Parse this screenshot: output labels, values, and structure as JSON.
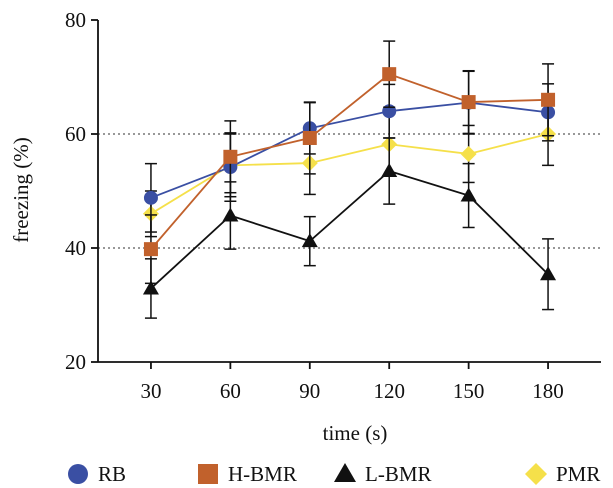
{
  "chart_data": {
    "type": "line",
    "title": "",
    "xlabel": "time (s)",
    "ylabel": "freezing (%)",
    "x": [
      30,
      60,
      90,
      120,
      150,
      180
    ],
    "xlim": [
      10,
      200
    ],
    "ylim": [
      20,
      80
    ],
    "yticks": [
      20,
      40,
      60,
      80
    ],
    "gridlines_y": [
      40,
      60
    ],
    "grid": "dotted horizontal at 40 and 60",
    "legend_position": "bottom",
    "series": [
      {
        "name": "RB",
        "marker": "circle",
        "color": "#3a4fa3",
        "values": [
          48.8,
          54.2,
          61.0,
          64.0,
          65.5,
          63.8
        ],
        "errors": [
          6.0,
          6.0,
          4.5,
          4.7,
          5.5,
          5.0
        ]
      },
      {
        "name": "H-BMR",
        "marker": "square",
        "color": "#c1612c",
        "values": [
          39.8,
          56.0,
          59.3,
          70.5,
          65.6,
          66.0
        ],
        "errors": [
          6.0,
          6.3,
          6.3,
          5.8,
          5.5,
          6.3
        ]
      },
      {
        "name": "L-BMR",
        "marker": "triangle",
        "color": "#111111",
        "values": [
          32.9,
          45.7,
          41.2,
          53.5,
          49.2,
          35.4
        ],
        "errors": [
          5.2,
          5.9,
          4.3,
          5.8,
          5.6,
          6.2
        ]
      },
      {
        "name": "PMR",
        "marker": "diamond",
        "color": "#f5e04a",
        "values": [
          46.0,
          54.5,
          54.9,
          58.2,
          56.5,
          60.0
        ],
        "errors": [
          4.0,
          5.5,
          5.5,
          5.5,
          5.0,
          5.5
        ]
      }
    ]
  }
}
